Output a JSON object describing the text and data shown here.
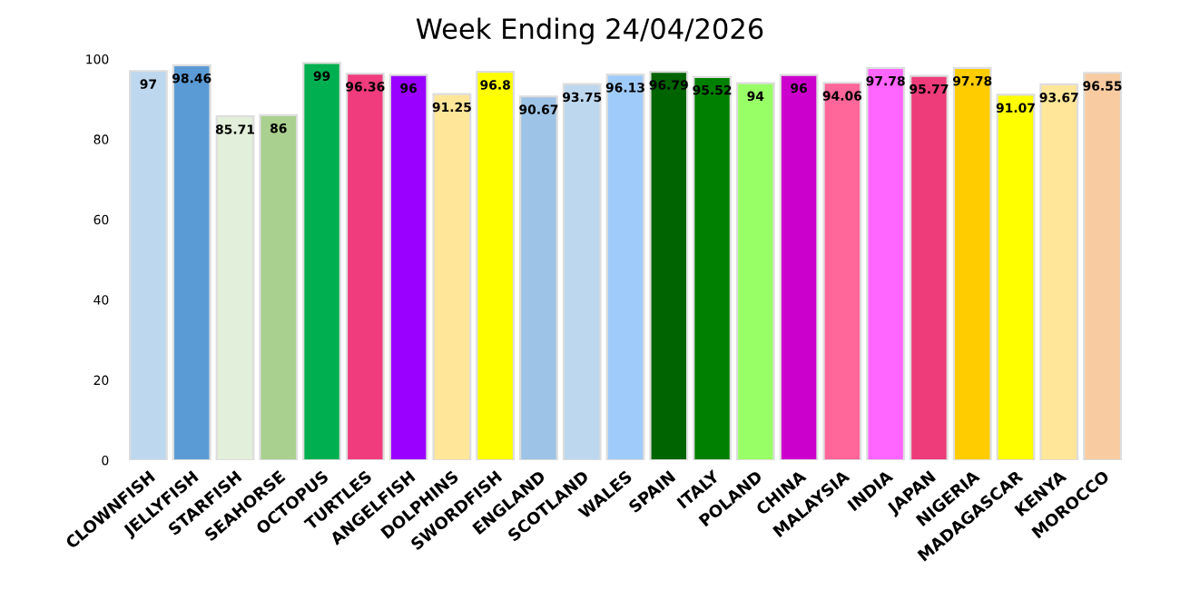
{
  "chart_data": {
    "type": "bar",
    "title": "Week Ending 24/04/2026",
    "categories": [
      "CLOWNFISH",
      "JELLYFISH",
      "STARFISH",
      "SEAHORSE",
      "OCTOPUS",
      "TURTLES",
      "ANGELFISH",
      "DOLPHINS",
      "SWORDFISH",
      "ENGLAND",
      "SCOTLAND",
      "WALES",
      "SPAIN",
      "ITALY",
      "POLAND",
      "CHINA",
      "MALAYSIA",
      "INDIA",
      "JAPAN",
      "NIGERIA",
      "MADAGASCAR",
      "KENYA",
      "MOROCCO"
    ],
    "values": [
      97,
      98.46,
      85.71,
      86,
      99,
      96.36,
      96,
      91.25,
      96.8,
      90.67,
      93.75,
      96.13,
      96.79,
      95.52,
      94,
      96,
      94.06,
      97.78,
      95.77,
      97.78,
      91.07,
      93.67,
      96.55
    ],
    "colors": [
      "#bdd7ee",
      "#5b9bd5",
      "#e2efda",
      "#a9d08e",
      "#00b050",
      "#f03c7c",
      "#9900ff",
      "#ffe699",
      "#ffff00",
      "#9dc3e6",
      "#bdd7ee",
      "#9fcbfa",
      "#006400",
      "#008000",
      "#99ff66",
      "#cc00cc",
      "#ff6699",
      "#ff66ff",
      "#ee3b7a",
      "#ffcc00",
      "#ffff00",
      "#ffe699",
      "#f8cba0"
    ],
    "ylim": [
      0,
      100
    ],
    "yticks": [
      0,
      20,
      40,
      60,
      80,
      100
    ],
    "grid": false,
    "data_labels": true
  }
}
